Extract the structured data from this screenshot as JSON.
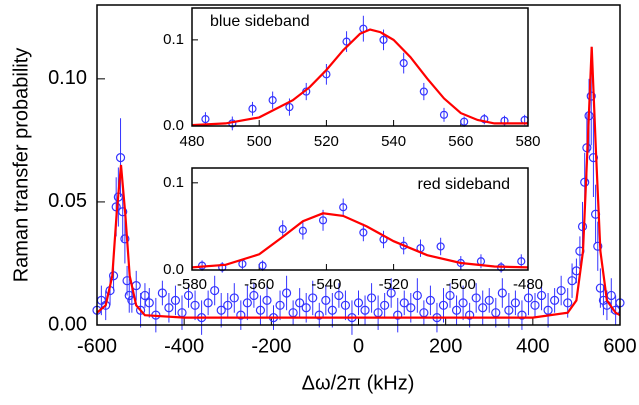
{
  "chart_data": [
    {
      "type": "scatter",
      "xlabel": "Δω/2π (kHz)",
      "ylabel": "Raman transfer probability",
      "xlim": [
        -600,
        600
      ],
      "ylim": [
        0,
        0.13
      ],
      "xticks": [
        -600,
        -400,
        -200,
        0,
        200,
        400,
        600
      ],
      "yticks": [
        {
          "value": 0,
          "label": "0.00"
        },
        {
          "value": 0.05,
          "label": "0.05"
        },
        {
          "value": 0.1,
          "label": "0.10"
        }
      ],
      "series": [
        {
          "type": "scatter",
          "color": "#3333ff",
          "x": [
            -600,
            -590,
            -580,
            -570,
            -562,
            -556,
            -551,
            -546,
            -541,
            -536,
            -531,
            -526,
            -520,
            -510,
            -500,
            -490,
            -480,
            -465,
            -450,
            -435,
            -420,
            -405,
            -390,
            -375,
            -360,
            -345,
            -330,
            -315,
            -300,
            -285,
            -270,
            -255,
            -240,
            -225,
            -210,
            -195,
            -180,
            -165,
            -150,
            -135,
            -120,
            -105,
            -90,
            -75,
            -60,
            -45,
            -30,
            -15,
            0,
            15,
            30,
            45,
            60,
            75,
            90,
            105,
            120,
            135,
            150,
            165,
            180,
            195,
            210,
            225,
            240,
            255,
            270,
            285,
            300,
            315,
            330,
            345,
            360,
            375,
            390,
            405,
            420,
            435,
            450,
            465,
            480,
            490,
            500,
            508,
            514,
            519,
            524,
            529,
            534,
            539,
            544,
            549,
            555,
            562,
            570,
            580,
            590,
            600
          ],
          "values": [
            0.006,
            0.01,
            0.008,
            0.014,
            0.02,
            0.048,
            0.052,
            0.068,
            0.046,
            0.035,
            0.018,
            0.012,
            0.01,
            0.016,
            0.006,
            0.012,
            0.009,
            0.004,
            0.013,
            0.007,
            0.01,
            0.005,
            0.012,
            0.008,
            0.003,
            0.009,
            0.014,
            0.006,
            0.008,
            0.011,
            0.004,
            0.009,
            0.012,
            0.006,
            0.01,
            0.003,
            0.008,
            0.013,
            0.005,
            0.009,
            0.007,
            0.011,
            0.004,
            0.01,
            0.006,
            0.012,
            0.008,
            0.003,
            0.009,
            0.006,
            0.011,
            0.005,
            0.008,
            0.013,
            0.004,
            0.009,
            0.007,
            0.012,
            0.005,
            0.01,
            0.003,
            0.008,
            0.012,
            0.006,
            0.009,
            0.004,
            0.011,
            0.007,
            0.01,
            0.005,
            0.013,
            0.006,
            0.009,
            0.004,
            0.011,
            0.008,
            0.012,
            0.006,
            0.01,
            0.014,
            0.009,
            0.018,
            0.022,
            0.03,
            0.04,
            0.058,
            0.072,
            0.085,
            0.093,
            0.068,
            0.045,
            0.032,
            0.015,
            0.01,
            0.008,
            0.012,
            0.006,
            0.009
          ],
          "errors": [
            0.006,
            0.006,
            0.006,
            0.006,
            0.006,
            0.012,
            0.012,
            0.016,
            0.012,
            0.01,
            0.006,
            0.007,
            0.005,
            0.006,
            0.007,
            0.005,
            0.006,
            0.007,
            0.005,
            0.006,
            0.006,
            0.007,
            0.005,
            0.006,
            0.007,
            0.005,
            0.006,
            0.007,
            0.005,
            0.006,
            0.006,
            0.007,
            0.005,
            0.006,
            0.007,
            0.005,
            0.006,
            0.007,
            0.005,
            0.006,
            0.006,
            0.007,
            0.005,
            0.006,
            0.007,
            0.005,
            0.006,
            0.007,
            0.005,
            0.006,
            0.006,
            0.007,
            0.005,
            0.006,
            0.007,
            0.005,
            0.006,
            0.007,
            0.005,
            0.006,
            0.006,
            0.007,
            0.005,
            0.006,
            0.007,
            0.005,
            0.006,
            0.007,
            0.005,
            0.006,
            0.006,
            0.007,
            0.005,
            0.006,
            0.007,
            0.005,
            0.006,
            0.007,
            0.005,
            0.006,
            0.006,
            0.007,
            0.005,
            0.006,
            0.01,
            0.012,
            0.014,
            0.015,
            0.02,
            0.016,
            0.012,
            0.01,
            0.008,
            0.006,
            0.006,
            0.007,
            0.006,
            0.006
          ]
        },
        {
          "type": "line",
          "color": "#ff0000",
          "x": [
            -600,
            -580,
            -565,
            -555,
            -545,
            -535,
            -525,
            -510,
            -490,
            -400,
            -200,
            0,
            200,
            400,
            480,
            500,
            515,
            525,
            535,
            545,
            555,
            570,
            590,
            600
          ],
          "values": [
            0.005,
            0.008,
            0.02,
            0.045,
            0.065,
            0.045,
            0.02,
            0.008,
            0.004,
            0.003,
            0.003,
            0.003,
            0.003,
            0.003,
            0.005,
            0.01,
            0.03,
            0.07,
            0.113,
            0.07,
            0.03,
            0.01,
            0.005,
            0.004
          ]
        }
      ]
    },
    {
      "type": "scatter",
      "annotation": "blue sideband",
      "xlim": [
        480,
        580
      ],
      "ylim": [
        0,
        0.137
      ],
      "xticks": [
        480,
        500,
        520,
        540,
        560,
        580
      ],
      "yticks": [
        {
          "value": 0,
          "label": "0.0"
        },
        {
          "value": 0.1,
          "label": "0.1"
        }
      ],
      "series": [
        {
          "type": "scatter",
          "color": "#3333ff",
          "x": [
            484,
            492,
            498,
            504,
            509,
            514,
            520,
            526,
            531,
            537,
            543,
            549,
            555,
            561,
            567,
            573,
            579
          ],
          "values": [
            0.008,
            0.003,
            0.02,
            0.03,
            0.022,
            0.04,
            0.06,
            0.098,
            0.113,
            0.1,
            0.073,
            0.04,
            0.013,
            0.005,
            0.008,
            0.006,
            0.007
          ],
          "errors": [
            0.008,
            0.008,
            0.008,
            0.01,
            0.01,
            0.01,
            0.012,
            0.012,
            0.015,
            0.012,
            0.012,
            0.01,
            0.008,
            0.006,
            0.006,
            0.006,
            0.006
          ]
        },
        {
          "type": "line",
          "color": "#ff0000",
          "x": [
            480,
            490,
            500,
            510,
            515,
            520,
            525,
            530,
            533,
            536,
            540,
            545,
            550,
            555,
            560,
            565,
            570,
            580
          ],
          "values": [
            0.001,
            0.003,
            0.01,
            0.03,
            0.045,
            0.065,
            0.088,
            0.107,
            0.112,
            0.109,
            0.1,
            0.08,
            0.055,
            0.032,
            0.015,
            0.007,
            0.003,
            0.003
          ]
        }
      ]
    },
    {
      "type": "scatter",
      "annotation": "red sideband",
      "xlim": [
        -580,
        -480
      ],
      "ylim": [
        0,
        0.117
      ],
      "xticks": [
        -580,
        -560,
        -540,
        -520,
        -500,
        -480
      ],
      "yticks": [
        {
          "value": 0,
          "label": "0.0"
        },
        {
          "value": 0.1,
          "label": "0.1"
        }
      ],
      "series": [
        {
          "type": "scatter",
          "color": "#3333ff",
          "x": [
            -577,
            -571,
            -565,
            -559,
            -553,
            -547,
            -541,
            -535,
            -529,
            -523,
            -517,
            -512,
            -506,
            -500,
            -494,
            -488,
            -482
          ],
          "values": [
            0.005,
            0.003,
            0.007,
            0.005,
            0.047,
            0.045,
            0.057,
            0.072,
            0.043,
            0.035,
            0.028,
            0.025,
            0.027,
            0.008,
            0.01,
            0.003,
            0.01
          ],
          "errors": [
            0.006,
            0.006,
            0.006,
            0.006,
            0.01,
            0.01,
            0.012,
            0.01,
            0.01,
            0.01,
            0.01,
            0.01,
            0.01,
            0.008,
            0.008,
            0.006,
            0.008
          ]
        },
        {
          "type": "line",
          "color": "#ff0000",
          "x": [
            -580,
            -570,
            -560,
            -553,
            -547,
            -541,
            -535,
            -528,
            -520,
            -510,
            -500,
            -490,
            -480
          ],
          "values": [
            0.003,
            0.006,
            0.018,
            0.038,
            0.056,
            0.065,
            0.062,
            0.05,
            0.033,
            0.017,
            0.008,
            0.004,
            0.003
          ]
        }
      ]
    }
  ]
}
